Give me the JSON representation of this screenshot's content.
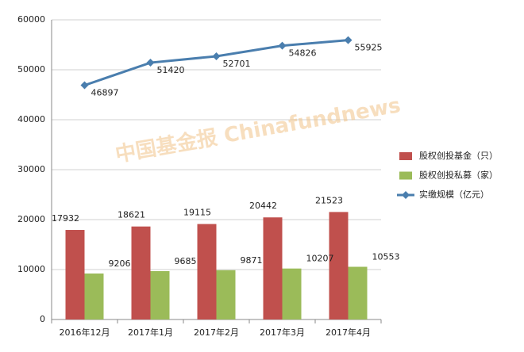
{
  "chart_data": {
    "type": "bar",
    "watermark": "中国基金报 Chinafundnews",
    "categories": [
      "2016年12月",
      "2017年1月",
      "2017年2月",
      "2017年3月",
      "2017年4月"
    ],
    "series": [
      {
        "name": "股权创投基金（只）",
        "type": "bar",
        "color": "#c0504d",
        "values": [
          17932,
          18621,
          19115,
          20442,
          21523
        ]
      },
      {
        "name": "股权创投私募（家）",
        "type": "bar",
        "color": "#9bbb59",
        "values": [
          9206,
          9685,
          9871,
          10207,
          10553
        ]
      },
      {
        "name": "实缴规模（亿元）",
        "type": "line",
        "color": "#4a7eae",
        "values": [
          46897,
          51420,
          52701,
          54826,
          55925
        ]
      }
    ],
    "ylim": [
      0,
      60000
    ],
    "yticks": [
      0,
      10000,
      20000,
      30000,
      40000,
      50000,
      60000
    ],
    "grid": true,
    "legend": "right"
  }
}
